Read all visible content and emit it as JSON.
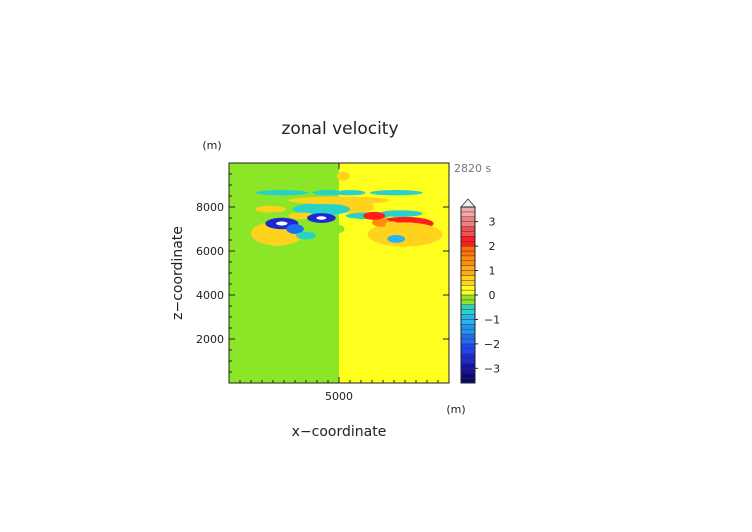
{
  "chart_data": {
    "type": "heatmap",
    "title": "zonal velocity",
    "time_label": "2820 s",
    "xlabel": "x−coordinate",
    "ylabel": "z−coordinate",
    "x_unit": "(m)",
    "y_unit": "(m)",
    "xlim": [
      0,
      10000
    ],
    "ylim": [
      0,
      10000
    ],
    "x_ticks": [
      {
        "value": 5000,
        "label": "5000"
      }
    ],
    "y_ticks": [
      {
        "value": 2000,
        "label": "2000"
      },
      {
        "value": 4000,
        "label": "4000"
      },
      {
        "value": 6000,
        "label": "6000"
      },
      {
        "value": 8000,
        "label": "8000"
      }
    ],
    "colorbar": {
      "min": -3.6,
      "max": 3.6,
      "step": 0.2,
      "labels": [
        {
          "value": 3,
          "label": "3"
        },
        {
          "value": 2,
          "label": "2"
        },
        {
          "value": 1,
          "label": "1"
        },
        {
          "value": 0,
          "label": "0"
        },
        {
          "value": -1,
          "label": "−1"
        },
        {
          "value": -2,
          "label": "−2"
        },
        {
          "value": -3,
          "label": "−3"
        }
      ],
      "over_color": "#f0f0f0",
      "colors": [
        {
          "from": -3.6,
          "color": "#0a0a6e"
        },
        {
          "from": -3.2,
          "color": "#1414a0"
        },
        {
          "from": -2.8,
          "color": "#1e28d2"
        },
        {
          "from": -2.4,
          "color": "#1e46f0"
        },
        {
          "from": -2.0,
          "color": "#1e6ef0"
        },
        {
          "from": -1.6,
          "color": "#1e96f0"
        },
        {
          "from": -1.2,
          "color": "#28b4f0"
        },
        {
          "from": -0.8,
          "color": "#28d2c8"
        },
        {
          "from": -0.4,
          "color": "#8ce628"
        },
        {
          "from": 0.0,
          "color": "#ffff1e"
        },
        {
          "from": 0.4,
          "color": "#ffd21e"
        },
        {
          "from": 0.8,
          "color": "#ffaa14"
        },
        {
          "from": 1.2,
          "color": "#ff8c0a"
        },
        {
          "from": 1.6,
          "color": "#ff6e0a"
        },
        {
          "from": 2.0,
          "color": "#ff1e1e"
        },
        {
          "from": 2.4,
          "color": "#f05050"
        },
        {
          "from": 2.8,
          "color": "#f08080"
        },
        {
          "from": 3.2,
          "color": "#f5aaaa"
        }
      ]
    },
    "field": {
      "background_left": -0.1,
      "background_right": 0.1,
      "split_x": 5000,
      "features": [
        {
          "x": 8000,
          "z": 7250,
          "rx": 1300,
          "rz": 300,
          "value": 2.2
        },
        {
          "x": 8000,
          "z": 6750,
          "rx": 1700,
          "rz": 550,
          "value": 0.45
        },
        {
          "x": 2200,
          "z": 6800,
          "rx": 1200,
          "rz": 550,
          "value": 0.45
        },
        {
          "x": 5700,
          "z": 8000,
          "rx": 900,
          "rz": 300,
          "value": 0.45
        },
        {
          "x": 4200,
          "z": 7900,
          "rx": 1300,
          "rz": 280,
          "value": -0.6
        },
        {
          "x": 5000,
          "z": 8300,
          "rx": 2300,
          "rz": 180,
          "value": 0.4
        },
        {
          "x": 2400,
          "z": 8650,
          "rx": 1200,
          "rz": 120,
          "value": -0.6
        },
        {
          "x": 7600,
          "z": 8650,
          "rx": 1200,
          "rz": 120,
          "value": -0.6
        },
        {
          "x": 4500,
          "z": 8650,
          "rx": 700,
          "rz": 120,
          "value": -0.8
        },
        {
          "x": 5500,
          "z": 8650,
          "rx": 700,
          "rz": 120,
          "value": -0.8
        },
        {
          "x": 3300,
          "z": 7600,
          "rx": 600,
          "rz": 150,
          "value": 0.4
        },
        {
          "x": 6300,
          "z": 7600,
          "rx": 1000,
          "rz": 150,
          "value": -0.6
        },
        {
          "x": 7800,
          "z": 7700,
          "rx": 1000,
          "rz": 150,
          "value": -0.6
        },
        {
          "x": 2400,
          "z": 7250,
          "rx": 750,
          "rz": 260,
          "value": -2.8
        },
        {
          "x": 4200,
          "z": 7500,
          "rx": 650,
          "rz": 220,
          "value": -2.6
        },
        {
          "x": 3000,
          "z": 7000,
          "rx": 400,
          "rz": 220,
          "value": -1.8
        },
        {
          "x": 6900,
          "z": 7300,
          "rx": 400,
          "rz": 200,
          "value": 1.2
        },
        {
          "x": 2200,
          "z": 6400,
          "rx": 350,
          "rz": 180,
          "value": 0.5
        },
        {
          "x": 3500,
          "z": 6700,
          "rx": 450,
          "rz": 180,
          "value": -0.7
        },
        {
          "x": 6600,
          "z": 7600,
          "rx": 500,
          "rz": 180,
          "value": 2.0
        },
        {
          "x": 7400,
          "z": 7200,
          "rx": 300,
          "rz": 150,
          "value": 0.6
        },
        {
          "x": 7600,
          "z": 6550,
          "rx": 400,
          "rz": 180,
          "value": -0.9
        },
        {
          "x": 8200,
          "z": 7150,
          "rx": 350,
          "rz": 150,
          "value": 0.6
        },
        {
          "x": 4900,
          "z": 7000,
          "rx": 350,
          "rz": 200,
          "value": -0.4
        },
        {
          "x": 1900,
          "z": 7900,
          "rx": 700,
          "rz": 150,
          "value": 0.45
        },
        {
          "x": 8900,
          "z": 6600,
          "rx": 350,
          "rz": 150,
          "value": 0.45
        },
        {
          "x": 5200,
          "z": 9400,
          "rx": 300,
          "rz": 200,
          "value": 0.4
        }
      ]
    }
  }
}
